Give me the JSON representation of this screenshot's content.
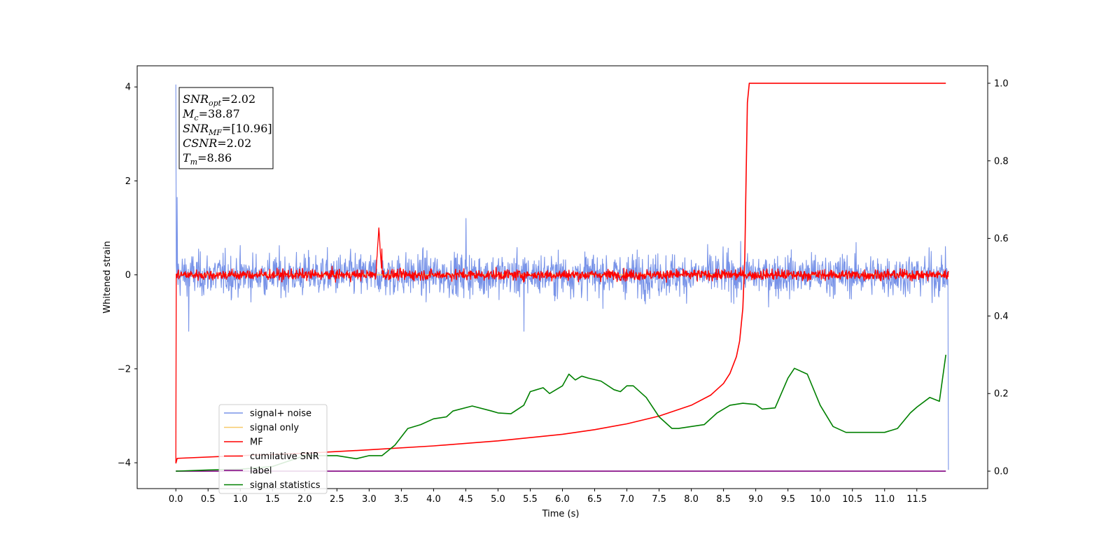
{
  "chart_data": {
    "type": "line",
    "title": "",
    "xlabel": "Time (s)",
    "ylabel": "Whitened strain",
    "xlim": [
      -0.6,
      12.6
    ],
    "ylim": [
      -4.55,
      4.45
    ],
    "y2lim": [
      -0.045,
      1.045
    ],
    "xticks": [
      "0.0",
      "0.5",
      "1.0",
      "1.5",
      "2.0",
      "2.5",
      "3.0",
      "3.5",
      "4.0",
      "4.5",
      "5.0",
      "5.5",
      "6.0",
      "6.5",
      "7.0",
      "7.5",
      "8.0",
      "8.5",
      "9.0",
      "9.5",
      "10.0",
      "10.5",
      "11.0",
      "11.5"
    ],
    "yticks": [
      4,
      2,
      0,
      -2,
      -4
    ],
    "y2ticks": [
      "0.0",
      "0.2",
      "0.4",
      "0.6",
      "0.8",
      "1.0"
    ],
    "grid": false,
    "legend_position": "lower-left",
    "annotations": [
      {
        "symbol": "SNR",
        "sub": "opt",
        "value": "=2.02"
      },
      {
        "symbol": "M",
        "sub": "c",
        "value": "=38.87"
      },
      {
        "symbol": "SNR",
        "sub": "MF",
        "value": "=[10.96]"
      },
      {
        "symbol": "CSNR",
        "sub": "",
        "value": "=2.02"
      },
      {
        "symbol": "T",
        "sub": "m",
        "value": "=8.86"
      }
    ],
    "series": [
      {
        "name": "signal+ noise",
        "color": "#7893e8",
        "axis": "left",
        "kind": "noise",
        "x_range": [
          0,
          11.99
        ],
        "amplitude": 0.32,
        "extremes": [
          [
            0.0,
            4.05
          ],
          [
            0.02,
            1.65
          ],
          [
            0.2,
            -1.2
          ],
          [
            4.5,
            1.2
          ],
          [
            5.4,
            -1.2
          ],
          [
            11.99,
            -4.15
          ]
        ]
      },
      {
        "name": "signal only",
        "color": "#f7c96a",
        "axis": "left",
        "kind": "flat",
        "x": [
          0,
          11.95
        ],
        "y": [
          0,
          0
        ]
      },
      {
        "name": "MF",
        "color": "#ff0000",
        "axis": "left",
        "kind": "noise",
        "x_range": [
          0,
          11.99
        ],
        "amplitude": 0.08,
        "extremes": [
          [
            0.0,
            -4.0
          ],
          [
            3.15,
            1.0
          ],
          [
            3.2,
            0.55
          ],
          [
            3.3,
            0.1
          ]
        ]
      },
      {
        "name": "cumilative SNR",
        "color": "#ff0000",
        "axis": "right",
        "kind": "curve",
        "x": [
          0.0,
          0.02,
          1.0,
          2.0,
          3.0,
          4.0,
          5.0,
          6.0,
          6.5,
          7.0,
          7.5,
          8.0,
          8.3,
          8.5,
          8.6,
          8.7,
          8.75,
          8.8,
          8.83,
          8.85,
          8.87,
          8.9,
          11.95
        ],
        "y": [
          0.02,
          0.033,
          0.04,
          0.046,
          0.055,
          0.065,
          0.078,
          0.095,
          0.107,
          0.122,
          0.142,
          0.17,
          0.196,
          0.226,
          0.252,
          0.295,
          0.335,
          0.42,
          0.55,
          0.75,
          0.95,
          1.0,
          1.0
        ]
      },
      {
        "name": "label",
        "color": "#800080",
        "axis": "right",
        "kind": "flat",
        "x": [
          0.0,
          11.95
        ],
        "y": [
          0.0,
          0.0
        ]
      },
      {
        "name": "signal statistics",
        "color": "#008000",
        "axis": "right",
        "kind": "curve",
        "x": [
          0.0,
          0.5,
          1.0,
          1.5,
          2.0,
          2.5,
          2.8,
          3.0,
          3.2,
          3.4,
          3.6,
          3.8,
          4.0,
          4.2,
          4.3,
          4.6,
          4.9,
          5.0,
          5.2,
          5.4,
          5.5,
          5.7,
          5.8,
          6.0,
          6.1,
          6.2,
          6.3,
          6.4,
          6.6,
          6.8,
          6.9,
          7.0,
          7.1,
          7.3,
          7.5,
          7.7,
          7.8,
          8.0,
          8.2,
          8.4,
          8.6,
          8.8,
          9.0,
          9.1,
          9.3,
          9.5,
          9.6,
          9.8,
          10.0,
          10.2,
          10.4,
          10.6,
          10.8,
          11.0,
          11.2,
          11.4,
          11.5,
          11.7,
          11.85,
          11.95
        ],
        "y": [
          0.0,
          0.003,
          0.005,
          0.012,
          0.04,
          0.04,
          0.032,
          0.04,
          0.04,
          0.067,
          0.11,
          0.12,
          0.135,
          0.14,
          0.155,
          0.168,
          0.155,
          0.15,
          0.148,
          0.17,
          0.205,
          0.215,
          0.2,
          0.22,
          0.25,
          0.235,
          0.245,
          0.24,
          0.232,
          0.21,
          0.205,
          0.22,
          0.22,
          0.19,
          0.14,
          0.11,
          0.11,
          0.115,
          0.12,
          0.15,
          0.17,
          0.175,
          0.172,
          0.16,
          0.163,
          0.24,
          0.265,
          0.25,
          0.17,
          0.115,
          0.1,
          0.1,
          0.1,
          0.1,
          0.11,
          0.15,
          0.165,
          0.19,
          0.18,
          0.3
        ]
      }
    ]
  }
}
